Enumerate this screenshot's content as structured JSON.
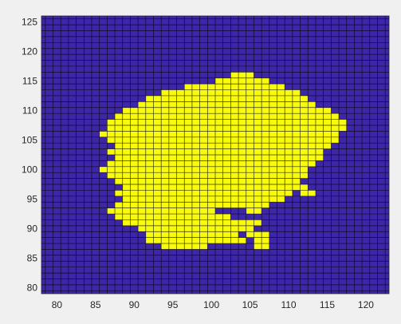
{
  "chart_data": {
    "type": "heatmap",
    "title": "",
    "xlabel": "",
    "ylabel": "",
    "xlim": [
      78,
      123
    ],
    "ylim": [
      79,
      126
    ],
    "xticks": [
      80,
      85,
      90,
      95,
      100,
      105,
      110,
      115,
      120
    ],
    "yticks": [
      80,
      85,
      90,
      95,
      100,
      105,
      110,
      115,
      120,
      125
    ],
    "x_tick_labels": [
      "80",
      "85",
      "90",
      "95",
      "100",
      "105",
      "110",
      "115",
      "120"
    ],
    "y_tick_labels": [
      "80",
      "85",
      "90",
      "95",
      "100",
      "105",
      "110",
      "115",
      "120",
      "125"
    ],
    "grid": true,
    "background_color": "#3e26a8",
    "fill_color": "#f9fb0e",
    "grid_line_color": "#000000",
    "cell_size": 1,
    "filled_cells_by_row": [
      {
        "y": 87,
        "ranges": [
          [
            94,
            98
          ],
          [
            99,
            99
          ],
          [
            106,
            107
          ]
        ]
      },
      {
        "y": 88,
        "ranges": [
          [
            92,
            104
          ],
          [
            106,
            107
          ]
        ]
      },
      {
        "y": 89,
        "ranges": [
          [
            92,
            103
          ],
          [
            105,
            107
          ]
        ]
      },
      {
        "y": 90,
        "ranges": [
          [
            91,
            105
          ]
        ]
      },
      {
        "y": 91,
        "ranges": [
          [
            89,
            106
          ]
        ]
      },
      {
        "y": 92,
        "ranges": [
          [
            88,
            102
          ]
        ]
      },
      {
        "y": 93,
        "ranges": [
          [
            87,
            100
          ],
          [
            105,
            106
          ]
        ]
      },
      {
        "y": 94,
        "ranges": [
          [
            88,
            107
          ]
        ]
      },
      {
        "y": 95,
        "ranges": [
          [
            89,
            109
          ]
        ]
      },
      {
        "y": 96,
        "ranges": [
          [
            88,
            110
          ],
          [
            112,
            113
          ]
        ]
      },
      {
        "y": 97,
        "ranges": [
          [
            89,
            112
          ]
        ]
      },
      {
        "y": 98,
        "ranges": [
          [
            88,
            111
          ]
        ]
      },
      {
        "y": 99,
        "ranges": [
          [
            87,
            112
          ]
        ]
      },
      {
        "y": 100,
        "ranges": [
          [
            86,
            112
          ]
        ]
      },
      {
        "y": 101,
        "ranges": [
          [
            87,
            113
          ]
        ]
      },
      {
        "y": 102,
        "ranges": [
          [
            88,
            114
          ]
        ]
      },
      {
        "y": 103,
        "ranges": [
          [
            87,
            114
          ]
        ]
      },
      {
        "y": 104,
        "ranges": [
          [
            88,
            115
          ]
        ]
      },
      {
        "y": 105,
        "ranges": [
          [
            87,
            116
          ]
        ]
      },
      {
        "y": 106,
        "ranges": [
          [
            86,
            116
          ]
        ]
      },
      {
        "y": 107,
        "ranges": [
          [
            87,
            117
          ]
        ]
      },
      {
        "y": 108,
        "ranges": [
          [
            87,
            117
          ]
        ]
      },
      {
        "y": 109,
        "ranges": [
          [
            88,
            116
          ]
        ]
      },
      {
        "y": 110,
        "ranges": [
          [
            89,
            115
          ]
        ]
      },
      {
        "y": 111,
        "ranges": [
          [
            91,
            113
          ]
        ]
      },
      {
        "y": 112,
        "ranges": [
          [
            92,
            112
          ]
        ]
      },
      {
        "y": 113,
        "ranges": [
          [
            94,
            111
          ]
        ]
      },
      {
        "y": 114,
        "ranges": [
          [
            97,
            109
          ]
        ]
      },
      {
        "y": 115,
        "ranges": [
          [
            101,
            107
          ]
        ]
      },
      {
        "y": 116,
        "ranges": [
          [
            103,
            105
          ]
        ]
      }
    ]
  }
}
